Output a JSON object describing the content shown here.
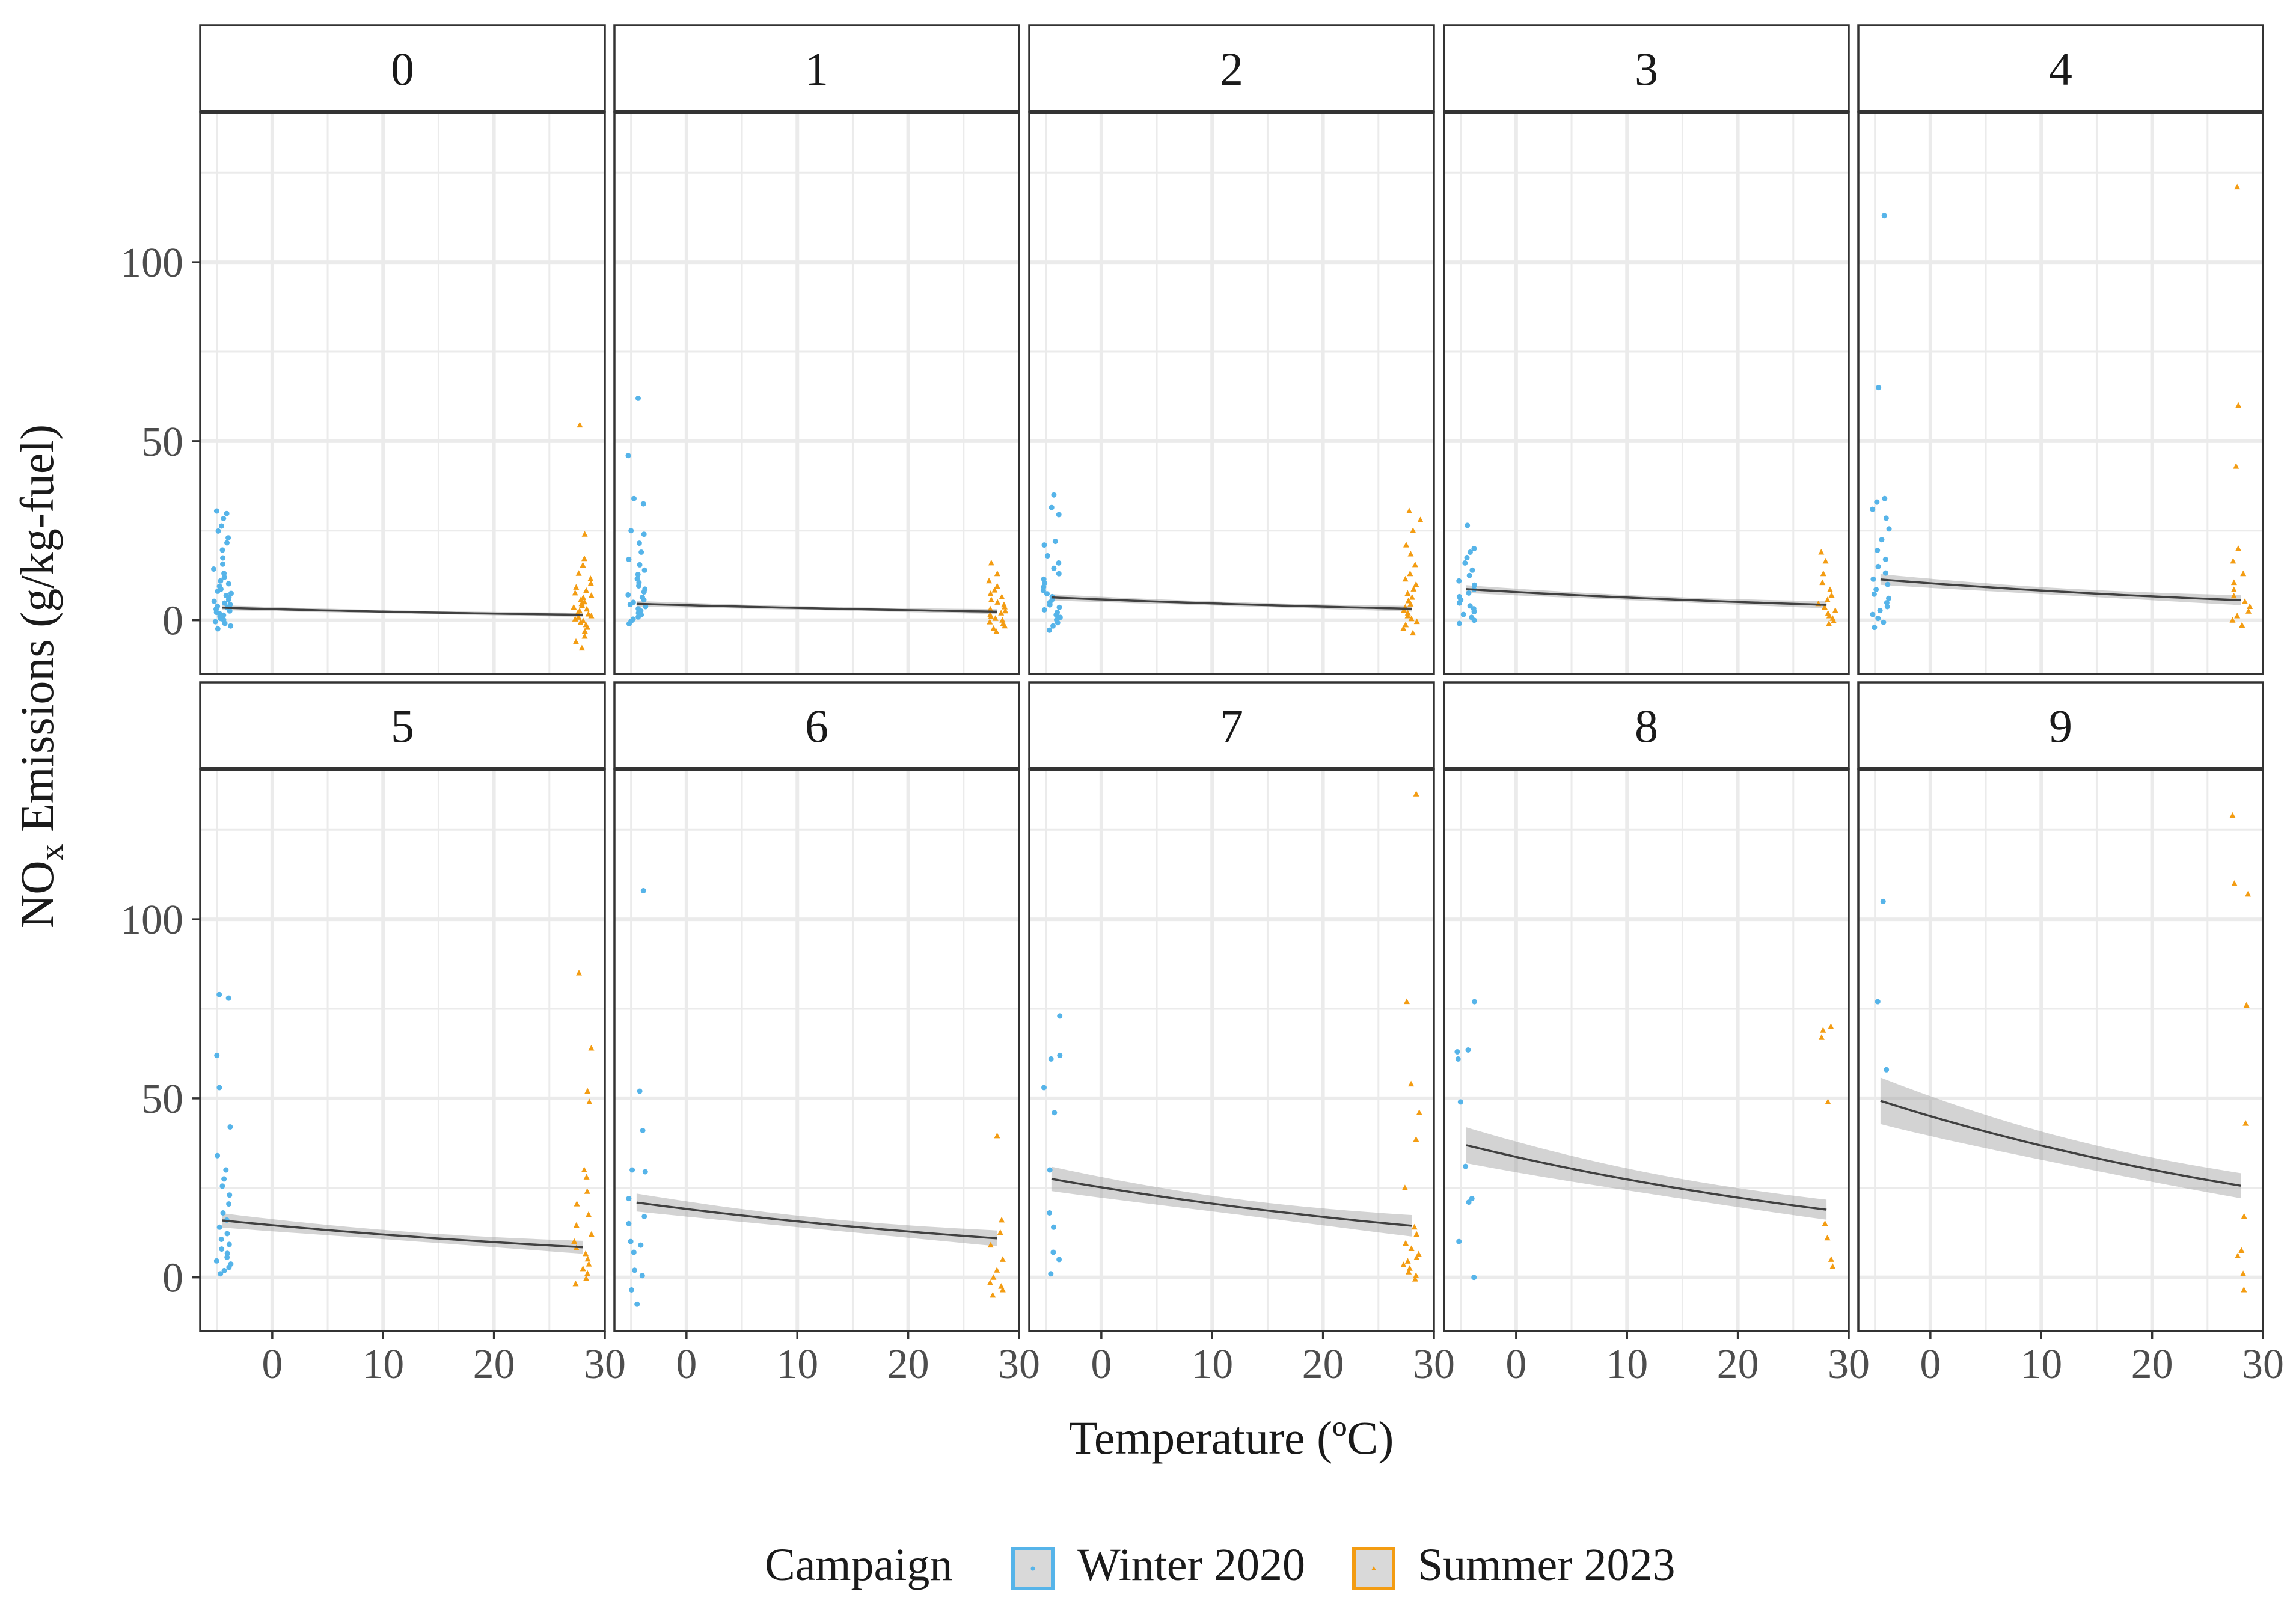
{
  "colors": {
    "winter": "#56B4E9",
    "summer": "#F39C12",
    "fit_line": "#404040",
    "ribbon": "#9e9e9e",
    "grid": "#ebebeb",
    "frame": "#333333"
  },
  "chart_data": {
    "type": "scatter",
    "facet_layout": "2 rows x 5 columns",
    "xlabel": "Temperature (ºC)",
    "ylabel": "NOx Emissions (g/kg-fuel)",
    "ylabel_parts": [
      "NO",
      "x",
      " Emissions (g/kg-fuel)"
    ],
    "xlim": [
      -6.5,
      30
    ],
    "ylim": [
      -15,
      142
    ],
    "x_ticks": [
      0,
      10,
      20,
      30
    ],
    "y_ticks": [
      0,
      50,
      100
    ],
    "x_tick_labels": [
      "0",
      "10",
      "20",
      "30"
    ],
    "y_tick_labels": [
      "0",
      "50",
      "100"
    ],
    "grid": true,
    "legend": {
      "title": "Campaign",
      "position": "bottom",
      "entries": [
        {
          "label": "Winter 2020",
          "color": "#56B4E9",
          "shape": "circle"
        },
        {
          "label": "Summer 2023",
          "color": "#F39C12",
          "shape": "triangle"
        }
      ]
    },
    "campaign_temperatures": {
      "Winter 2020": -4.5,
      "Summer 2023": 28
    },
    "facets": [
      {
        "label": "0",
        "fit": {
          "x": [
            -4.5,
            28
          ],
          "y_start": 3.5,
          "y_end": 1.5,
          "ci_start": 0.7,
          "ci_end": 0.6
        },
        "winter": [
          30.5,
          29.8,
          28.4,
          26.3,
          24.9,
          23.0,
          21.6,
          19.6,
          17.4,
          15.7,
          14.3,
          13.1,
          12.0,
          11.0,
          10.2,
          9.5,
          8.7,
          8.1,
          7.5,
          6.9,
          6.4,
          5.8,
          5.3,
          4.8,
          4.4,
          3.9,
          3.5,
          3.1,
          2.6,
          2.2,
          1.8,
          1.4,
          1.0,
          0.5,
          0.1,
          -0.4,
          -0.9,
          -1.6,
          -2.4
        ],
        "summer": [
          54.5,
          24.0,
          17.2,
          15.4,
          13.1,
          11.6,
          10.3,
          9.2,
          8.3,
          7.6,
          6.9,
          6.3,
          5.7,
          5.1,
          4.6,
          4.1,
          3.6,
          3.1,
          2.6,
          2.1,
          1.7,
          1.2,
          0.8,
          0.3,
          -0.2,
          -0.7,
          -1.3,
          -2.0,
          -3.1,
          -4.5,
          -6.0,
          -7.8
        ]
      },
      {
        "label": "1",
        "fit": {
          "x": [
            -4.5,
            28
          ],
          "y_start": 4.6,
          "y_end": 2.4,
          "ci_start": 0.8,
          "ci_end": 0.7
        },
        "winter": [
          62.0,
          46.0,
          34.0,
          32.5,
          25.0,
          24.0,
          21.5,
          19.0,
          17.0,
          15.5,
          14.0,
          12.8,
          11.6,
          10.5,
          9.6,
          8.7,
          7.9,
          7.1,
          6.4,
          5.7,
          5.0,
          4.4,
          3.8,
          3.2,
          2.6,
          2.0,
          1.5,
          0.9,
          0.3,
          -0.3,
          -1.0
        ],
        "summer": [
          16.0,
          13.0,
          11.0,
          9.5,
          8.4,
          7.4,
          6.5,
          5.7,
          5.0,
          4.3,
          3.7,
          3.1,
          2.6,
          2.0,
          1.5,
          1.0,
          0.5,
          0.0,
          -0.5,
          -1.0,
          -1.6,
          -2.3,
          -3.2
        ]
      },
      {
        "label": "2",
        "fit": {
          "x": [
            -4.5,
            28
          ],
          "y_start": 6.4,
          "y_end": 3.2,
          "ci_start": 0.9,
          "ci_end": 0.8
        },
        "winter": [
          35.0,
          31.5,
          29.5,
          22.0,
          21.0,
          18.0,
          16.0,
          14.5,
          13.0,
          11.5,
          10.4,
          9.3,
          8.3,
          7.4,
          6.6,
          5.8,
          5.0,
          4.3,
          3.6,
          2.9,
          2.2,
          1.5,
          0.8,
          0.1,
          -0.7,
          -1.6,
          -2.8
        ],
        "summer": [
          30.5,
          28.0,
          25.0,
          21.0,
          18.5,
          15.5,
          13.0,
          11.5,
          10.0,
          8.7,
          7.5,
          6.4,
          5.4,
          4.5,
          3.6,
          2.8,
          2.0,
          1.2,
          0.4,
          -0.4,
          -1.3,
          -2.3,
          -3.6
        ]
      },
      {
        "label": "3",
        "fit": {
          "x": [
            -4.5,
            28
          ],
          "y_start": 8.7,
          "y_end": 4.3,
          "ci_start": 1.1,
          "ci_end": 1.0
        },
        "winter": [
          26.5,
          20.0,
          19.0,
          17.5,
          16.0,
          14.0,
          12.5,
          11.0,
          9.8,
          8.6,
          7.6,
          6.6,
          5.7,
          4.8,
          4.0,
          3.2,
          2.4,
          1.6,
          0.8,
          0.0,
          -0.9
        ],
        "summer": [
          19.0,
          16.5,
          13.0,
          10.5,
          8.5,
          7.0,
          5.7,
          4.6,
          3.6,
          2.7,
          1.9,
          1.2,
          0.5,
          -0.2,
          -1.0
        ]
      },
      {
        "label": "4",
        "fit": {
          "x": [
            -4.5,
            28
          ],
          "y_start": 11.4,
          "y_end": 5.6,
          "ci_start": 1.5,
          "ci_end": 1.4
        },
        "winter": [
          113.0,
          65.0,
          34.0,
          33.0,
          31.0,
          28.5,
          25.5,
          22.5,
          19.5,
          17.0,
          15.0,
          13.2,
          11.5,
          10.0,
          8.6,
          7.3,
          6.1,
          4.9,
          3.8,
          2.7,
          1.6,
          0.5,
          -0.6,
          -2.0
        ],
        "summer": [
          121.0,
          60.0,
          43.0,
          20.0,
          16.5,
          13.0,
          10.5,
          8.5,
          6.8,
          5.2,
          3.8,
          2.5,
          1.2,
          0.0,
          -1.4
        ]
      },
      {
        "label": "5",
        "fit": {
          "x": [
            -4.5,
            28
          ],
          "y_start": 15.9,
          "y_end": 8.4,
          "ci_start": 2.0,
          "ci_end": 1.8
        },
        "winter": [
          79.0,
          78.0,
          62.0,
          53.0,
          42.0,
          34.0,
          30.0,
          27.5,
          25.5,
          23.0,
          20.5,
          18.0,
          16.0,
          14.0,
          12.2,
          10.6,
          9.2,
          7.9,
          6.7,
          5.6,
          4.6,
          3.7,
          2.8,
          1.9,
          1.0
        ],
        "summer": [
          85.0,
          64.0,
          52.0,
          49.0,
          30.0,
          28.0,
          24.0,
          20.5,
          17.5,
          14.5,
          12.0,
          10.0,
          8.2,
          6.6,
          5.1,
          3.7,
          2.4,
          1.1,
          -0.3,
          -1.8
        ]
      },
      {
        "label": "6",
        "fit": {
          "x": [
            -4.5,
            28
          ],
          "y_start": 20.9,
          "y_end": 10.9,
          "ci_start": 2.5,
          "ci_end": 2.2
        },
        "winter": [
          108.0,
          52.0,
          41.0,
          30.0,
          29.5,
          22.0,
          17.0,
          15.0,
          10.0,
          9.0,
          7.0,
          2.0,
          0.5,
          -3.5,
          -7.5
        ],
        "summer": [
          39.5,
          16.0,
          12.5,
          9.0,
          5.0,
          2.0,
          0.0,
          -1.5,
          -2.5,
          -3.5,
          -5.0
        ]
      },
      {
        "label": "7",
        "fit": {
          "x": [
            -4.5,
            28
          ],
          "y_start": 27.5,
          "y_end": 14.4,
          "ci_start": 3.4,
          "ci_end": 3.0
        },
        "winter": [
          73.0,
          62.0,
          61.0,
          53.0,
          46.0,
          30.0,
          18.0,
          14.0,
          7.0,
          5.0,
          1.0
        ],
        "summer": [
          135.0,
          77.0,
          54.0,
          46.0,
          38.5,
          25.0,
          14.0,
          12.0,
          9.5,
          8.0,
          6.5,
          5.5,
          4.5,
          3.5,
          2.5,
          1.5,
          0.5,
          -0.5
        ]
      },
      {
        "label": "8",
        "fit": {
          "x": [
            -4.5,
            28
          ],
          "y_start": 36.9,
          "y_end": 18.9,
          "ci_start": 5.0,
          "ci_end": 2.8
        },
        "winter": [
          77.0,
          63.5,
          63.0,
          61.0,
          49.0,
          31.0,
          22.0,
          21.0,
          10.0,
          0.0
        ],
        "summer": [
          70.0,
          69.0,
          67.0,
          49.0,
          15.0,
          11.0,
          5.0,
          3.0
        ]
      },
      {
        "label": "9",
        "fit": {
          "x": [
            -4.5,
            28
          ],
          "y_start": 49.3,
          "y_end": 25.6,
          "ci_start": 6.5,
          "ci_end": 3.5
        },
        "winter": [
          105.0,
          77.0,
          58.0
        ],
        "summer": [
          129.0,
          110.0,
          107.0,
          76.0,
          43.0,
          17.0,
          7.5,
          6.0,
          1.0,
          -3.5
        ]
      }
    ]
  }
}
